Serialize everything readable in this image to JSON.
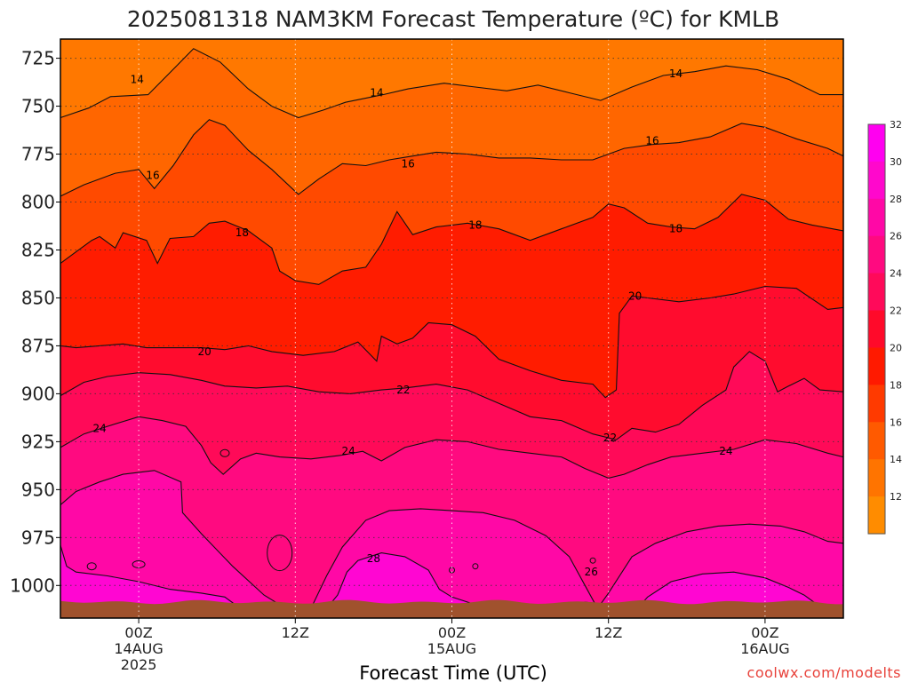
{
  "chart_data": {
    "type": "heatmap",
    "title": "2025081318 NAM3KM Forecast Temperature (ºC) for KMLB",
    "xlabel": "Forecast Time (UTC)",
    "ylabel": "",
    "credit": "coolwx.com/modelts",
    "y_axis": {
      "range": [
        1017,
        715
      ],
      "inverted": true,
      "ticks": [
        725,
        750,
        775,
        800,
        825,
        850,
        875,
        900,
        925,
        950,
        975,
        1000
      ],
      "tick_labels": [
        "725",
        "750",
        "775",
        "800",
        "825",
        "850",
        "875",
        "900",
        "925",
        "950",
        "975",
        "1000"
      ]
    },
    "x_axis": {
      "range_hours": [
        -5,
        45
      ],
      "ticks": [
        {
          "hour": 0,
          "lines": [
            "00Z",
            "14AUG",
            "2025"
          ]
        },
        {
          "hour": 10,
          "lines": [
            "12Z"
          ]
        },
        {
          "hour": 20,
          "lines": [
            "00Z",
            "15AUG"
          ]
        },
        {
          "hour": 30,
          "lines": [
            "12Z"
          ]
        },
        {
          "hour": 40,
          "lines": [
            "00Z",
            "16AUG"
          ]
        }
      ]
    },
    "grid": true,
    "legend": "right",
    "colorbar": {
      "labels": [
        "12",
        "14",
        "16",
        "18",
        "20",
        "22",
        "24",
        "26",
        "28",
        "30",
        "32"
      ],
      "colors": [
        "#ff8c00",
        "#ff7400",
        "#ff5a00",
        "#ff3a00",
        "#ff1a00",
        "#ff0a2a",
        "#ff0a5a",
        "#ff0a80",
        "#ff08a6",
        "#ff08cc",
        "#ff00f0"
      ]
    },
    "contour_levels": [
      14,
      16,
      18,
      20,
      22,
      24,
      26,
      28
    ],
    "contour_labels": [
      {
        "value": "14",
        "x": -0.1,
        "y": 736
      },
      {
        "value": "14",
        "x": 15.2,
        "y": 743
      },
      {
        "value": "14",
        "x": 34.3,
        "y": 733
      },
      {
        "value": "16",
        "x": 0.9,
        "y": 786
      },
      {
        "value": "16",
        "x": 17.2,
        "y": 780
      },
      {
        "value": "16",
        "x": 32.8,
        "y": 768
      },
      {
        "value": "18",
        "x": 6.6,
        "y": 816
      },
      {
        "value": "18",
        "x": 21.5,
        "y": 812
      },
      {
        "value": "18",
        "x": 34.3,
        "y": 814
      },
      {
        "value": "20",
        "x": 4.2,
        "y": 878
      },
      {
        "value": "20",
        "x": 31.7,
        "y": 849
      },
      {
        "value": "22",
        "x": 16.9,
        "y": 898
      },
      {
        "value": "22",
        "x": 30.1,
        "y": 923
      },
      {
        "value": "24",
        "x": -2.5,
        "y": 918
      },
      {
        "value": "24",
        "x": 13.4,
        "y": 930
      },
      {
        "value": "24",
        "x": 37.5,
        "y": 930
      },
      {
        "value": "26",
        "x": 28.9,
        "y": 993
      },
      {
        "value": "28",
        "x": 15.0,
        "y": 986
      }
    ],
    "surface_color": "#a0522d"
  }
}
